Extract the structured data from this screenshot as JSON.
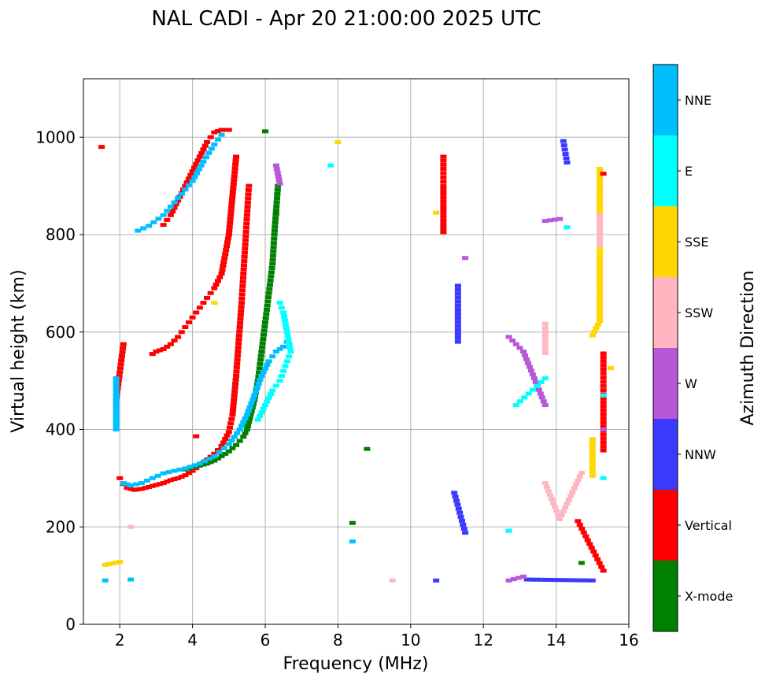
{
  "chart_data": {
    "type": "scatter",
    "title": "NAL CADI - Apr 20 21:00:00 2025 UTC",
    "xlabel": "Frequency (MHz)",
    "ylabel": "Virtual height (km)",
    "xlim": [
      1,
      16
    ],
    "ylim": [
      0,
      1120
    ],
    "xticks": [
      2,
      4,
      6,
      8,
      10,
      12,
      14,
      16
    ],
    "yticks": [
      0,
      200,
      400,
      600,
      800,
      1000
    ],
    "grid": true,
    "colorbar": {
      "title": "Azimuth Direction",
      "categories": [
        {
          "label": "X-mode",
          "color": "#008000"
        },
        {
          "label": "Vertical",
          "color": "#ff0000"
        },
        {
          "label": "NNW",
          "color": "#3a3aff"
        },
        {
          "label": "W",
          "color": "#b857d8"
        },
        {
          "label": "SSW",
          "color": "#ffb6c1"
        },
        {
          "label": "SSE",
          "color": "#ffd700"
        },
        {
          "label": "E",
          "color": "#00ffff"
        },
        {
          "label": "NNE",
          "color": "#00bfff"
        }
      ]
    },
    "traces": [
      {
        "category": "Vertical",
        "points": [
          [
            2.0,
            300
          ],
          [
            2.1,
            288
          ],
          [
            2.2,
            280
          ],
          [
            2.4,
            276
          ],
          [
            2.6,
            278
          ],
          [
            2.8,
            282
          ],
          [
            3.0,
            286
          ],
          [
            3.2,
            290
          ],
          [
            3.4,
            296
          ],
          [
            3.6,
            300
          ],
          [
            3.8,
            306
          ],
          [
            4.0,
            315
          ],
          [
            4.2,
            326
          ],
          [
            4.4,
            338
          ],
          [
            4.6,
            350
          ],
          [
            4.8,
            366
          ],
          [
            5.0,
            395
          ],
          [
            5.1,
            430
          ],
          [
            5.15,
            470
          ],
          [
            5.2,
            510
          ],
          [
            5.25,
            560
          ],
          [
            5.3,
            610
          ],
          [
            5.35,
            660
          ],
          [
            5.4,
            720
          ],
          [
            5.45,
            780
          ],
          [
            5.5,
            840
          ],
          [
            5.55,
            900
          ]
        ]
      },
      {
        "category": "X-mode",
        "points": [
          [
            3.8,
            318
          ],
          [
            4.0,
            322
          ],
          [
            4.2,
            326
          ],
          [
            4.4,
            330
          ],
          [
            4.6,
            336
          ],
          [
            4.8,
            345
          ],
          [
            5.0,
            355
          ],
          [
            5.2,
            368
          ],
          [
            5.4,
            385
          ],
          [
            5.5,
            400
          ],
          [
            5.6,
            430
          ],
          [
            5.7,
            460
          ],
          [
            5.8,
            500
          ],
          [
            5.9,
            560
          ],
          [
            6.0,
            620
          ],
          [
            6.1,
            680
          ],
          [
            6.2,
            740
          ],
          [
            6.25,
            800
          ],
          [
            6.3,
            850
          ],
          [
            6.35,
            900
          ]
        ]
      },
      {
        "category": "NNE",
        "points": [
          [
            2.1,
            290
          ],
          [
            2.3,
            285
          ],
          [
            2.6,
            290
          ],
          [
            2.9,
            300
          ],
          [
            3.2,
            310
          ],
          [
            3.5,
            315
          ],
          [
            3.8,
            320
          ],
          [
            4.2,
            330
          ],
          [
            4.6,
            345
          ],
          [
            5.0,
            370
          ],
          [
            5.3,
            400
          ],
          [
            5.5,
            430
          ],
          [
            5.7,
            470
          ],
          [
            5.9,
            510
          ],
          [
            6.1,
            540
          ],
          [
            6.3,
            560
          ],
          [
            6.5,
            570
          ],
          [
            6.6,
            580
          ]
        ]
      },
      {
        "category": "E",
        "points": [
          [
            5.8,
            420
          ],
          [
            6.0,
            450
          ],
          [
            6.2,
            480
          ],
          [
            6.4,
            500
          ],
          [
            6.5,
            520
          ],
          [
            6.6,
            540
          ],
          [
            6.7,
            560
          ],
          [
            6.6,
            600
          ],
          [
            6.5,
            640
          ],
          [
            6.4,
            660
          ]
        ]
      },
      {
        "category": "Vertical",
        "points": [
          [
            2.9,
            555
          ],
          [
            3.0,
            560
          ],
          [
            3.2,
            565
          ],
          [
            3.4,
            575
          ],
          [
            3.6,
            590
          ],
          [
            3.8,
            610
          ],
          [
            4.0,
            630
          ],
          [
            4.2,
            650
          ],
          [
            4.4,
            670
          ],
          [
            4.6,
            690
          ],
          [
            4.8,
            720
          ],
          [
            4.9,
            760
          ],
          [
            5.0,
            800
          ],
          [
            5.05,
            840
          ],
          [
            5.1,
            880
          ],
          [
            5.15,
            920
          ],
          [
            5.2,
            960
          ]
        ]
      },
      {
        "category": "Vertical",
        "points": [
          [
            3.2,
            820
          ],
          [
            3.4,
            840
          ],
          [
            3.6,
            870
          ],
          [
            3.8,
            900
          ],
          [
            4.0,
            930
          ],
          [
            4.2,
            960
          ],
          [
            4.4,
            990
          ],
          [
            4.6,
            1010
          ],
          [
            4.8,
            1015
          ],
          [
            5.0,
            1015
          ]
        ]
      },
      {
        "category": "NNE",
        "points": [
          [
            2.5,
            808
          ],
          [
            2.8,
            818
          ],
          [
            3.2,
            840
          ],
          [
            3.6,
            875
          ],
          [
            4.0,
            910
          ],
          [
            4.3,
            950
          ],
          [
            4.6,
            985
          ],
          [
            4.8,
            1005
          ]
        ]
      },
      {
        "category": "SSE",
        "points": [
          [
            1.6,
            122
          ],
          [
            1.8,
            125
          ],
          [
            2.0,
            128
          ],
          [
            4.6,
            660
          ],
          [
            8.0,
            990
          ],
          [
            10.7,
            845
          ],
          [
            15.2,
            935
          ],
          [
            15.2,
            913
          ],
          [
            15.2,
            825
          ],
          [
            15.2,
            758
          ],
          [
            15.2,
            622
          ],
          [
            15.0,
            593
          ],
          [
            15.0,
            380
          ],
          [
            15.0,
            305
          ],
          [
            15.5,
            526
          ]
        ]
      },
      {
        "category": "Vertical",
        "points": [
          [
            1.5,
            980
          ],
          [
            1.9,
            460
          ],
          [
            2.1,
            575
          ],
          [
            4.1,
            386
          ],
          [
            10.9,
            960
          ],
          [
            10.9,
            935
          ],
          [
            10.9,
            900
          ],
          [
            10.9,
            805
          ],
          [
            15.3,
            925
          ],
          [
            15.3,
            556
          ],
          [
            15.3,
            515
          ],
          [
            15.3,
            472
          ],
          [
            15.3,
            357
          ],
          [
            15.3,
            110
          ],
          [
            14.6,
            212
          ]
        ]
      },
      {
        "category": "NNW",
        "points": [
          [
            11.3,
            695
          ],
          [
            11.3,
            580
          ],
          [
            11.2,
            270
          ],
          [
            11.5,
            188
          ],
          [
            14.2,
            992
          ],
          [
            14.3,
            948
          ],
          [
            15.3,
            400
          ],
          [
            15.0,
            90
          ],
          [
            13.2,
            92
          ],
          [
            10.7,
            90
          ]
        ]
      },
      {
        "category": "W",
        "points": [
          [
            6.3,
            942
          ],
          [
            6.4,
            905
          ],
          [
            11.5,
            752
          ],
          [
            12.7,
            590
          ],
          [
            13.1,
            560
          ],
          [
            13.7,
            450
          ],
          [
            13.7,
            828
          ],
          [
            14.1,
            832
          ],
          [
            12.7,
            90
          ],
          [
            13.1,
            98
          ],
          [
            15.3,
            400
          ]
        ]
      },
      {
        "category": "SSW",
        "points": [
          [
            13.7,
            617
          ],
          [
            13.7,
            557
          ],
          [
            13.7,
            290
          ],
          [
            14.1,
            216
          ],
          [
            14.7,
            311
          ],
          [
            15.2,
            840
          ],
          [
            15.2,
            778
          ],
          [
            2.3,
            200
          ],
          [
            9.5,
            90
          ]
        ]
      },
      {
        "category": "E",
        "points": [
          [
            7.8,
            942
          ],
          [
            12.7,
            192
          ],
          [
            13.7,
            505
          ],
          [
            12.9,
            450
          ],
          [
            14.3,
            815
          ],
          [
            15.3,
            300
          ],
          [
            15.3,
            470
          ]
        ]
      },
      {
        "category": "X-mode",
        "points": [
          [
            6.0,
            1012
          ],
          [
            6.3,
            842
          ],
          [
            8.4,
            208
          ],
          [
            8.8,
            360
          ],
          [
            14.7,
            126
          ]
        ]
      },
      {
        "category": "NNE",
        "points": [
          [
            1.9,
            505
          ],
          [
            1.9,
            400
          ],
          [
            2.3,
            92
          ],
          [
            8.4,
            170
          ],
          [
            1.6,
            90
          ]
        ]
      }
    ]
  }
}
